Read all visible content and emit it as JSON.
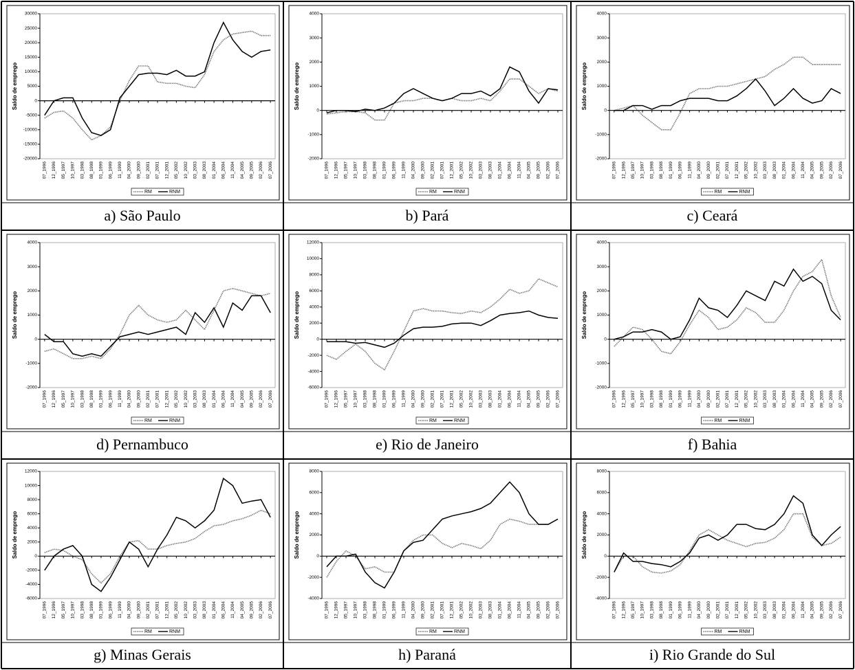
{
  "chart_data": [
    {
      "type": "line",
      "caption": "a) São Paulo",
      "y_label": "Saldo de emprego",
      "categories": [
        "07_1996",
        "12_1996",
        "05_1997",
        "10_1997",
        "03_1998",
        "08_1998",
        "01_1999",
        "06_1999",
        "11_1999",
        "04_2000",
        "09_2000",
        "02_2001",
        "07_2001",
        "12_2001",
        "05_2002",
        "10_2002",
        "03_2003",
        "08_2003",
        "01_2004",
        "06_2004",
        "11_2004",
        "04_2005",
        "09_2005",
        "02_2006",
        "07_2006"
      ],
      "ylim": [
        -20000,
        30000
      ],
      "yticks": [
        -20000,
        -15000,
        -10000,
        -5000,
        0,
        5000,
        10000,
        15000,
        20000,
        25000,
        30000
      ],
      "series": [
        {
          "name": "RM",
          "color": "#777777",
          "line_style": "dotted",
          "values": [
            -6000,
            -4000,
            -3500,
            -6000,
            -10000,
            -13500,
            -12000,
            -9000,
            0,
            7000,
            12000,
            12000,
            6500,
            6000,
            6000,
            5000,
            4500,
            9000,
            17000,
            21000,
            23000,
            23500,
            24000,
            22500,
            22500
          ]
        },
        {
          "name": "RNM",
          "color": "#000000",
          "line_style": "solid",
          "values": [
            -5000,
            0,
            1000,
            1000,
            -6000,
            -11000,
            -12000,
            -10000,
            1000,
            5000,
            9000,
            9500,
            9500,
            9000,
            10500,
            8500,
            8500,
            10000,
            20000,
            27000,
            21000,
            17000,
            15000,
            17000,
            17500
          ]
        }
      ]
    },
    {
      "type": "line",
      "caption": "b) Pará",
      "y_label": "Saldo de emprego",
      "categories": [
        "07_1996",
        "12_1996",
        "05_1997",
        "10_1997",
        "03_1998",
        "08_1998",
        "01_1999",
        "06_1999",
        "11_1999",
        "04_2000",
        "09_2000",
        "02_2001",
        "07_2001",
        "12_2001",
        "05_2002",
        "10_2002",
        "03_2003",
        "08_2003",
        "01_2004",
        "06_2004",
        "11_2004",
        "04_2005",
        "09_2005",
        "02_2006",
        "07_2006"
      ],
      "ylim": [
        -2000,
        4000
      ],
      "yticks": [
        -2000,
        -1000,
        0,
        1000,
        2000,
        3000,
        4000
      ],
      "series": [
        {
          "name": "RM",
          "color": "#777777",
          "line_style": "dotted",
          "values": [
            -150,
            -100,
            -50,
            -50,
            -100,
            -400,
            -400,
            300,
            400,
            400,
            500,
            500,
            400,
            500,
            400,
            400,
            500,
            400,
            800,
            1300,
            1300,
            1000,
            700,
            900,
            800
          ]
        },
        {
          "name": "RNM",
          "color": "#000000",
          "line_style": "solid",
          "values": [
            -100,
            0,
            0,
            -50,
            50,
            0,
            100,
            300,
            700,
            900,
            700,
            500,
            400,
            500,
            700,
            700,
            800,
            600,
            900,
            1800,
            1600,
            800,
            300,
            900,
            850
          ]
        }
      ]
    },
    {
      "type": "line",
      "caption": "c) Ceará",
      "y_label": "Saldo de emprego",
      "categories": [
        "07_1996",
        "12_1996",
        "05_1997",
        "10_1997",
        "03_1998",
        "08_1998",
        "01_1999",
        "06_1999",
        "11_1999",
        "04_2000",
        "09_2000",
        "02_2001",
        "07_2001",
        "12_2001",
        "05_2002",
        "10_2002",
        "03_2003",
        "08_2003",
        "01_2004",
        "06_2004",
        "11_2004",
        "04_2005",
        "09_2005",
        "02_2006",
        "07_2006"
      ],
      "ylim": [
        -2000,
        4000
      ],
      "yticks": [
        -2000,
        -1000,
        0,
        1000,
        2000,
        3000,
        4000
      ],
      "series": [
        {
          "name": "RM",
          "color": "#777777",
          "line_style": "dotted",
          "values": [
            0,
            100,
            200,
            -200,
            -500,
            -800,
            -800,
            -100,
            700,
            900,
            900,
            1000,
            1000,
            1100,
            1200,
            1300,
            1400,
            1700,
            1900,
            2200,
            2200,
            1900,
            1900,
            1900,
            1900
          ]
        },
        {
          "name": "RNM",
          "color": "#000000",
          "line_style": "solid",
          "values": [
            0,
            0,
            200,
            200,
            50,
            200,
            200,
            400,
            500,
            500,
            500,
            400,
            400,
            600,
            900,
            1300,
            800,
            200,
            500,
            900,
            500,
            300,
            400,
            900,
            700
          ]
        }
      ]
    },
    {
      "type": "line",
      "caption": "d) Pernambuco",
      "y_label": "Saldo de emprego",
      "categories": [
        "07_1996",
        "12_1996",
        "05_1997",
        "10_1997",
        "03_1998",
        "08_1998",
        "01_1999",
        "06_1999",
        "11_1999",
        "04_2000",
        "09_2000",
        "02_2001",
        "07_2001",
        "12_2001",
        "05_2002",
        "10_2002",
        "03_2003",
        "08_2003",
        "01_2004",
        "06_2004",
        "11_2004",
        "04_2005",
        "09_2005",
        "02_2006",
        "07_2006"
      ],
      "ylim": [
        -2000,
        4000
      ],
      "yticks": [
        -2000,
        -1000,
        0,
        1000,
        2000,
        3000,
        4000
      ],
      "series": [
        {
          "name": "RM",
          "color": "#777777",
          "line_style": "dotted",
          "values": [
            -500,
            -400,
            -600,
            -800,
            -800,
            -700,
            -800,
            -400,
            200,
            1000,
            1400,
            1000,
            800,
            700,
            800,
            1200,
            800,
            400,
            1200,
            2000,
            2100,
            2000,
            1900,
            1800,
            1900
          ]
        },
        {
          "name": "RNM",
          "color": "#000000",
          "line_style": "solid",
          "values": [
            200,
            -100,
            -100,
            -600,
            -700,
            -600,
            -700,
            -300,
            100,
            200,
            300,
            200,
            300,
            400,
            500,
            200,
            1100,
            700,
            1300,
            500,
            1500,
            1200,
            1800,
            1800,
            1100
          ]
        }
      ]
    },
    {
      "type": "line",
      "caption": "e) Rio de Janeiro",
      "y_label": "Saldo de emprego",
      "categories": [
        "07_1996",
        "12_1996",
        "05_1997",
        "10_1997",
        "03_1998",
        "08_1998",
        "01_1999",
        "06_1999",
        "11_1999",
        "04_2000",
        "09_2000",
        "02_2001",
        "07_2001",
        "12_2001",
        "05_2002",
        "10_2002",
        "03_2003",
        "08_2003",
        "01_2004",
        "06_2004",
        "11_2004",
        "04_2005",
        "09_2005",
        "02_2006",
        "07_2006"
      ],
      "ylim": [
        -6000,
        12000
      ],
      "yticks": [
        -6000,
        -4000,
        -2000,
        0,
        2000,
        4000,
        6000,
        8000,
        10000,
        12000
      ],
      "series": [
        {
          "name": "RM",
          "color": "#777777",
          "line_style": "dotted",
          "values": [
            -2000,
            -2500,
            -1500,
            -600,
            -1500,
            -3000,
            -3800,
            -1500,
            1000,
            3500,
            3800,
            3500,
            3500,
            3300,
            3200,
            3500,
            3300,
            4000,
            5000,
            6200,
            5700,
            6000,
            7500,
            7000,
            6500
          ]
        },
        {
          "name": "RNM",
          "color": "#000000",
          "line_style": "solid",
          "values": [
            -300,
            -300,
            -300,
            -500,
            -400,
            -700,
            -1000,
            -500,
            500,
            1300,
            1500,
            1500,
            1600,
            1900,
            2000,
            2000,
            1700,
            2300,
            3000,
            3200,
            3300,
            3500,
            3000,
            2700,
            2600
          ]
        }
      ]
    },
    {
      "type": "line",
      "caption": "f) Bahia",
      "y_label": "Saldo de emprego",
      "categories": [
        "07_1996",
        "12_1996",
        "05_1997",
        "10_1997",
        "03_1998",
        "08_1998",
        "01_1999",
        "06_1999",
        "11_1999",
        "04_2000",
        "09_2000",
        "02_2001",
        "07_2001",
        "12_2001",
        "05_2002",
        "10_2002",
        "03_2003",
        "08_2003",
        "01_2004",
        "06_2004",
        "11_2004",
        "04_2005",
        "09_2005",
        "02_2006",
        "07_2006"
      ],
      "ylim": [
        -2000,
        4000
      ],
      "yticks": [
        -2000,
        -1000,
        0,
        1000,
        2000,
        3000,
        4000
      ],
      "series": [
        {
          "name": "RM",
          "color": "#777777",
          "line_style": "dotted",
          "values": [
            -300,
            100,
            500,
            400,
            0,
            -500,
            -600,
            -100,
            600,
            1200,
            900,
            400,
            500,
            800,
            1300,
            1100,
            700,
            700,
            1200,
            2000,
            2600,
            2800,
            3300,
            1800,
            900
          ]
        },
        {
          "name": "RNM",
          "color": "#000000",
          "line_style": "solid",
          "values": [
            0,
            100,
            300,
            300,
            400,
            300,
            0,
            100,
            800,
            1700,
            1300,
            1200,
            900,
            1400,
            2000,
            1800,
            1600,
            2400,
            2200,
            2900,
            2400,
            2600,
            2300,
            1200,
            800
          ]
        }
      ]
    },
    {
      "type": "line",
      "caption": "g) Minas Gerais",
      "y_label": "Saldo de emprego",
      "categories": [
        "07_1996",
        "12_1996",
        "05_1997",
        "10_1997",
        "03_1998",
        "08_1998",
        "01_1999",
        "06_1999",
        "11_1999",
        "04_2000",
        "09_2000",
        "02_2001",
        "07_2001",
        "12_2001",
        "05_2002",
        "10_2002",
        "03_2003",
        "08_2003",
        "01_2004",
        "06_2004",
        "11_2004",
        "04_2005",
        "09_2005",
        "02_2006",
        "07_2006"
      ],
      "ylim": [
        -6000,
        12000
      ],
      "yticks": [
        -6000,
        -4000,
        -2000,
        0,
        2000,
        4000,
        6000,
        8000,
        10000,
        12000
      ],
      "series": [
        {
          "name": "RM",
          "color": "#777777",
          "line_style": "dotted",
          "values": [
            500,
            1000,
            800,
            0,
            -500,
            -2500,
            -3800,
            -2500,
            0,
            2000,
            2200,
            1000,
            1000,
            1500,
            1800,
            2000,
            2500,
            3500,
            4300,
            4500,
            5000,
            5300,
            5800,
            6500,
            6000
          ]
        },
        {
          "name": "RNM",
          "color": "#000000",
          "line_style": "solid",
          "values": [
            -2000,
            0,
            1000,
            1500,
            0,
            -4000,
            -5000,
            -3000,
            -500,
            2000,
            1000,
            -1500,
            1000,
            3000,
            5500,
            5000,
            4000,
            5000,
            6500,
            11000,
            10000,
            7500,
            7800,
            8000,
            5500
          ]
        }
      ]
    },
    {
      "type": "line",
      "caption": "h) Paraná",
      "y_label": "Saldo de emprego",
      "categories": [
        "07_1996",
        "12_1996",
        "05_1997",
        "10_1997",
        "03_1998",
        "08_1998",
        "01_1999",
        "06_1999",
        "11_1999",
        "04_2000",
        "09_2000",
        "02_2001",
        "07_2001",
        "12_2001",
        "05_2002",
        "10_2002",
        "03_2003",
        "08_2003",
        "01_2004",
        "06_2004",
        "11_2004",
        "04_2005",
        "09_2005",
        "02_2006",
        "07_2006"
      ],
      "ylim": [
        -4000,
        8000
      ],
      "yticks": [
        -4000,
        -2000,
        0,
        2000,
        4000,
        6000,
        8000
      ],
      "series": [
        {
          "name": "RM",
          "color": "#777777",
          "line_style": "dotted",
          "values": [
            -2000,
            -500,
            500,
            0,
            -1200,
            -1000,
            -1500,
            -1500,
            500,
            1500,
            2000,
            2000,
            1200,
            800,
            1200,
            1000,
            700,
            1500,
            3000,
            3500,
            3300,
            3000,
            3000,
            3000,
            3500
          ]
        },
        {
          "name": "RNM",
          "color": "#000000",
          "line_style": "solid",
          "values": [
            -1000,
            0,
            0,
            200,
            -1500,
            -2500,
            -3000,
            -1500,
            500,
            1300,
            1500,
            2500,
            3500,
            3800,
            4000,
            4200,
            4500,
            5000,
            6000,
            7000,
            6000,
            4000,
            3000,
            3000,
            3500
          ]
        }
      ]
    },
    {
      "type": "line",
      "caption": "i) Rio Grande do Sul",
      "y_label": "Saldo de emprego",
      "categories": [
        "07_1996",
        "12_1996",
        "05_1997",
        "10_1997",
        "03_1998",
        "08_1998",
        "01_1999",
        "06_1999",
        "11_1999",
        "04_2000",
        "09_2000",
        "02_2001",
        "07_2001",
        "12_2001",
        "05_2002",
        "10_2002",
        "03_2003",
        "08_2003",
        "01_2004",
        "06_2004",
        "11_2004",
        "04_2005",
        "09_2005",
        "02_2006",
        "07_2006"
      ],
      "ylim": [
        -4000,
        8000
      ],
      "yticks": [
        -4000,
        -2000,
        0,
        2000,
        4000,
        6000,
        8000
      ],
      "series": [
        {
          "name": "RM",
          "color": "#777777",
          "line_style": "dotted",
          "values": [
            -1500,
            0,
            0,
            -1000,
            -1500,
            -1600,
            -1400,
            -800,
            500,
            2000,
            2500,
            2000,
            1500,
            1200,
            900,
            1200,
            1300,
            1700,
            2500,
            4000,
            4000,
            1800,
            1000,
            1200,
            1800
          ]
        },
        {
          "name": "RNM",
          "color": "#000000",
          "line_style": "solid",
          "values": [
            -1500,
            300,
            -500,
            -500,
            -700,
            -800,
            -1000,
            -500,
            300,
            1700,
            2000,
            1500,
            2000,
            3000,
            3000,
            2600,
            2500,
            3000,
            4000,
            5700,
            5000,
            2000,
            1000,
            2000,
            2800
          ]
        }
      ]
    }
  ]
}
